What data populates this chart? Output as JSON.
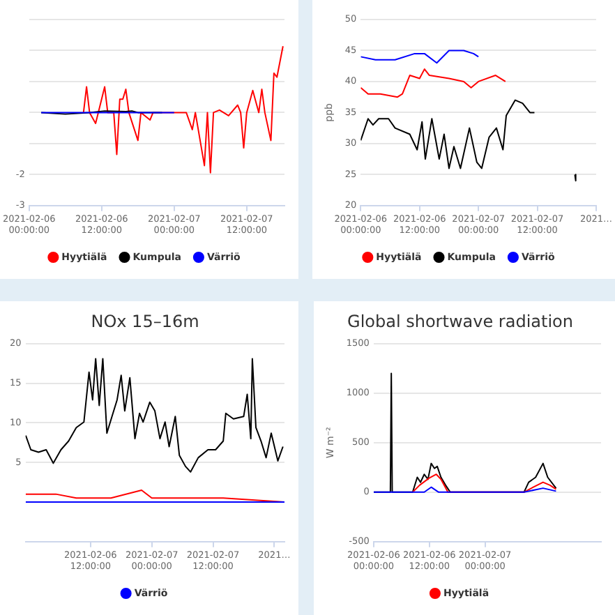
{
  "chart_data": [
    {
      "type": "line",
      "xlim": [
        "2021-02-06T00:00",
        "2021-02-07T18:15"
      ],
      "xticks": [
        {
          "value": "2021-02-06T00:00",
          "label": "2021-02-06 00:00:00"
        },
        {
          "value": "2021-02-06T12:00",
          "label": "2021-02-06 12:00:00"
        },
        {
          "value": "2021-02-07T00:00",
          "label": "2021-02-07 00:00:00"
        },
        {
          "value": "2021-02-07T12:00",
          "label": "2021-02-07 12:00:00"
        }
      ],
      "ylim": [
        -3,
        3
      ],
      "yticks": [
        -3,
        -2,
        {
          "value": -1,
          "label": null
        },
        {
          "value": 0,
          "label": null
        },
        {
          "value": 1,
          "label": null
        },
        {
          "value": 2,
          "label": null
        },
        {
          "value": 3,
          "label": null
        }
      ],
      "grid": "y",
      "legend": "bottom",
      "series": [
        {
          "name": "Hyytiälä",
          "color": "#ff0000",
          "x": [
            "2021-02-06T09:00",
            "2021-02-06T09:30",
            "2021-02-06T10:00",
            "2021-02-06T11:00",
            "2021-02-06T12:30",
            "2021-02-06T13:00",
            "2021-02-06T14:00",
            "2021-02-06T14:30",
            "2021-02-06T15:00",
            "2021-02-06T15:30",
            "2021-02-06T16:00",
            "2021-02-06T16:30",
            "2021-02-06T18:00",
            "2021-02-06T18:30",
            "2021-02-06T20:00",
            "2021-02-06T20:30",
            "2021-02-07T00:00",
            "2021-02-07T02:00",
            "2021-02-07T03:00",
            "2021-02-07T03:30",
            "2021-02-07T05:00",
            "2021-02-07T05:30",
            "2021-02-07T06:00",
            "2021-02-07T06:30",
            "2021-02-07T07:30",
            "2021-02-07T09:00",
            "2021-02-07T10:30",
            "2021-02-07T11:00",
            "2021-02-07T11:30",
            "2021-02-07T12:00",
            "2021-02-07T13:00",
            "2021-02-07T14:00",
            "2021-02-07T14:30",
            "2021-02-07T15:00",
            "2021-02-07T16:00",
            "2021-02-07T16:30",
            "2021-02-07T17:00",
            "2021-02-07T18:00"
          ],
          "values": [
            0,
            0.83,
            0,
            -0.35,
            0.83,
            0,
            0,
            -1.35,
            0.43,
            0.43,
            0.75,
            0,
            -0.9,
            0,
            -0.24,
            0,
            0,
            0,
            -0.55,
            0,
            -1.71,
            0,
            -1.94,
            0,
            0.08,
            -0.1,
            0.24,
            0,
            -1.14,
            0,
            0.71,
            0,
            0.75,
            0,
            -0.9,
            1.27,
            1.14,
            2.14
          ]
        },
        {
          "name": "Kumpula",
          "color": "#000000",
          "x": [
            "2021-02-06T02:00",
            "2021-02-06T06:00",
            "2021-02-06T10:00",
            "2021-02-06T12:30",
            "2021-02-06T16:00",
            "2021-02-06T17:00",
            "2021-02-06T18:00",
            "2021-02-06T22:00"
          ],
          "values": [
            0,
            -0.05,
            0,
            0.05,
            0.03,
            0.05,
            0,
            0
          ]
        },
        {
          "name": "Värriö",
          "color": "#0000ff",
          "x": [
            "2021-02-06T02:00",
            "2021-02-07T00:00"
          ],
          "values": [
            0,
            0
          ]
        }
      ]
    },
    {
      "type": "line",
      "ylabel": "ppb",
      "xlim": [
        "2021-02-06T00:00",
        "2021-02-08T00:00"
      ],
      "xticks": [
        {
          "value": "2021-02-06T00:00",
          "label": "2021-02-06 00:00:00"
        },
        {
          "value": "2021-02-06T12:00",
          "label": "2021-02-06 12:00:00"
        },
        {
          "value": "2021-02-07T00:00",
          "label": "2021-02-07 00:00:00"
        },
        {
          "value": "2021-02-07T12:00",
          "label": "2021-02-07 12:00:00"
        },
        {
          "value": "2021-02-08T00:00",
          "label": "2021…"
        }
      ],
      "ylim": [
        20,
        50
      ],
      "yticks": [
        20,
        25,
        30,
        35,
        40,
        45,
        50
      ],
      "grid": "y",
      "legend": "bottom",
      "series": [
        {
          "name": "Hyytiälä",
          "color": "#ff0000",
          "x": [
            "2021-02-06T00:00",
            "2021-02-06T01:30",
            "2021-02-06T04:00",
            "2021-02-06T07:30",
            "2021-02-06T08:30",
            "2021-02-06T10:00",
            "2021-02-06T12:00",
            "2021-02-06T13:00",
            "2021-02-06T14:00",
            "2021-02-06T18:00",
            "2021-02-06T21:00",
            "2021-02-06T22:30",
            "2021-02-07T00:00",
            "2021-02-07T03:30",
            "2021-02-07T05:30"
          ],
          "values": [
            39,
            38,
            38,
            37.5,
            38,
            41,
            40.5,
            42,
            41,
            40.5,
            40,
            39,
            40,
            41,
            40
          ]
        },
        {
          "name": "Kumpula",
          "color": "#000000",
          "x": [
            "2021-02-06T00:00",
            "2021-02-06T01:30",
            "2021-02-06T02:30",
            "2021-02-06T03:40",
            "2021-02-06T05:40",
            "2021-02-06T07:00",
            "2021-02-06T10:00",
            "2021-02-06T11:30",
            "2021-02-06T12:30",
            "2021-02-06T13:10",
            "2021-02-06T14:30",
            "2021-02-06T16:00",
            "2021-02-06T17:00",
            "2021-02-06T18:00",
            "2021-02-06T19:00",
            "2021-02-06T20:20",
            "2021-02-06T22:10",
            "2021-02-06T23:40",
            "2021-02-07T00:40",
            "2021-02-07T02:10",
            "2021-02-07T03:40",
            "2021-02-07T05:00",
            "2021-02-07T05:40",
            "2021-02-07T07:30",
            "2021-02-07T09:00",
            "2021-02-07T10:30",
            "2021-02-07T11:25",
            "2021-02-07T16:00",
            "2021-02-07T19:40",
            "2021-02-07T19:50"
          ],
          "values": [
            30.5,
            34,
            33,
            34,
            34,
            32.5,
            31.5,
            29,
            33.5,
            27.5,
            34,
            27.5,
            31.5,
            26,
            29.5,
            26,
            32.5,
            27,
            26,
            31,
            32.5,
            29,
            34.5,
            37,
            36.5,
            35,
            35,
            null,
            25,
            24
          ]
        },
        {
          "name": "Värriö",
          "color": "#0000ff",
          "x": [
            "2021-02-06T00:00",
            "2021-02-06T03:00",
            "2021-02-06T07:00",
            "2021-02-06T11:00",
            "2021-02-06T13:00",
            "2021-02-06T15:30",
            "2021-02-06T18:00",
            "2021-02-06T21:00",
            "2021-02-06T23:00",
            "2021-02-07T00:00"
          ],
          "values": [
            44,
            43.5,
            43.5,
            44.5,
            44.5,
            43,
            45,
            45,
            44.5,
            44
          ]
        }
      ]
    },
    {
      "type": "line",
      "title": "NOx 15–16m",
      "xlim": [
        "2021-02-05T23:15",
        "2021-02-08T02:00"
      ],
      "xticks": [
        {
          "value": "2021-02-06T12:00",
          "label": "2021-02-06 12:00:00"
        },
        {
          "value": "2021-02-07T00:00",
          "label": "2021-02-07 00:00:00"
        },
        {
          "value": "2021-02-07T12:00",
          "label": "2021-02-07 12:00:00"
        },
        {
          "value": "2021-02-08T00:00",
          "label": "2021…"
        }
      ],
      "ylim": [
        -5,
        20
      ],
      "yticks": [
        5,
        10,
        15,
        20
      ],
      "grid": "y",
      "legend": "bottom",
      "series": [
        {
          "color": "#000000",
          "x": [
            "2021-02-05T23:18",
            "2021-02-06T00:18",
            "2021-02-06T01:48",
            "2021-02-06T03:18",
            "2021-02-06T04:42",
            "2021-02-06T06:12",
            "2021-02-06T07:42",
            "2021-02-06T09:12",
            "2021-02-06T10:42",
            "2021-02-06T11:42",
            "2021-02-06T12:24",
            "2021-02-06T13:00",
            "2021-02-06T13:42",
            "2021-02-06T14:24",
            "2021-02-06T15:12",
            "2021-02-06T16:12",
            "2021-02-06T17:12",
            "2021-02-06T18:00",
            "2021-02-06T18:42",
            "2021-02-06T19:42",
            "2021-02-06T20:42",
            "2021-02-06T21:36",
            "2021-02-06T22:18",
            "2021-02-06T23:36",
            "2021-02-07T00:36",
            "2021-02-07T01:36",
            "2021-02-07T02:36",
            "2021-02-07T03:24",
            "2021-02-07T04:36",
            "2021-02-07T05:24",
            "2021-02-07T06:36",
            "2021-02-07T07:36",
            "2021-02-07T09:06",
            "2021-02-07T11:00",
            "2021-02-07T12:30",
            "2021-02-07T14:00",
            "2021-02-07T14:30",
            "2021-02-07T16:00",
            "2021-02-07T18:00",
            "2021-02-07T18:42",
            "2021-02-07T19:24",
            "2021-02-07T19:42",
            "2021-02-07T20:24",
            "2021-02-07T21:24",
            "2021-02-07T22:24",
            "2021-02-07T23:24",
            "2021-02-08T00:42",
            "2021-02-08T01:42"
          ],
          "values": [
            8.4,
            6.6,
            6.3,
            6.6,
            4.9,
            6.6,
            7.7,
            9.4,
            10.1,
            16.4,
            12.9,
            18.1,
            12.2,
            18.1,
            8.7,
            10.8,
            12.9,
            16,
            11.5,
            15.7,
            8,
            11.2,
            10.1,
            12.6,
            11.5,
            8,
            10.1,
            7,
            10.8,
            5.9,
            4.5,
            3.8,
            5.6,
            6.6,
            6.6,
            7.7,
            11.2,
            10.5,
            10.8,
            13.6,
            8,
            18.1,
            9.4,
            7.7,
            5.6,
            8.7,
            5.2,
            7
          ]
        },
        {
          "color": "#ff0000",
          "x": [
            "2021-02-05T23:18",
            "2021-02-06T05:12",
            "2021-02-06T09:12",
            "2021-02-06T13:00",
            "2021-02-06T16:00",
            "2021-02-06T22:00",
            "2021-02-07T00:00",
            "2021-02-07T07:00",
            "2021-02-07T14:00",
            "2021-02-08T02:00"
          ],
          "values": [
            1,
            1,
            0.5,
            0.5,
            0.5,
            1.5,
            0.5,
            0.5,
            0.5,
            0
          ]
        },
        {
          "name": "Värriö",
          "color": "#0000ff",
          "x": [
            "2021-02-05T23:18",
            "2021-02-08T02:00"
          ],
          "values": [
            0,
            0
          ]
        }
      ]
    },
    {
      "type": "line",
      "title": "Global shortwave radiation",
      "ylabel": "W m⁻²",
      "xlim": [
        "2021-02-06T00:00",
        "2021-02-08T01:00"
      ],
      "xticks": [
        {
          "value": "2021-02-06T00:00",
          "label": "2021-02-06 00:00:00"
        },
        {
          "value": "2021-02-06T12:00",
          "label": "2021-02-06 12:00:00"
        },
        {
          "value": "2021-02-07T00:00",
          "label": "2021-02-07 00:00:00"
        }
      ],
      "ylim": [
        -500,
        1500
      ],
      "yticks": [
        -500,
        0,
        500,
        1000,
        1500
      ],
      "grid": "y",
      "legend": "bottom",
      "series": [
        {
          "color": "#000000",
          "x": [
            "2021-02-06T00:00",
            "2021-02-06T03:36",
            "2021-02-06T03:48",
            "2021-02-06T04:00",
            "2021-02-06T08:24",
            "2021-02-06T09:24",
            "2021-02-06T10:06",
            "2021-02-06T10:54",
            "2021-02-06T11:42",
            "2021-02-06T12:24",
            "2021-02-06T13:06",
            "2021-02-06T13:42",
            "2021-02-06T14:30",
            "2021-02-06T15:30",
            "2021-02-06T16:30",
            "2021-02-07T08:24",
            "2021-02-07T09:24",
            "2021-02-07T10:54",
            "2021-02-07T12:30",
            "2021-02-07T13:30",
            "2021-02-07T15:18"
          ],
          "values": [
            0,
            0,
            1200,
            0,
            0,
            150,
            100,
            180,
            130,
            290,
            240,
            260,
            150,
            70,
            0,
            0,
            100,
            150,
            290,
            150,
            40
          ]
        },
        {
          "name": "Hyytiälä",
          "color": "#ff0000",
          "x": [
            "2021-02-06T08:24",
            "2021-02-06T09:54",
            "2021-02-06T11:54",
            "2021-02-06T13:30",
            "2021-02-06T14:30",
            "2021-02-06T16:00",
            "2021-02-07T08:24",
            "2021-02-07T10:24",
            "2021-02-07T12:30",
            "2021-02-07T14:00",
            "2021-02-07T15:18"
          ],
          "values": [
            0,
            70,
            140,
            180,
            130,
            0,
            0,
            50,
            100,
            70,
            30
          ]
        },
        {
          "color": "#0000ff",
          "x": [
            "2021-02-06T00:00",
            "2021-02-06T10:54",
            "2021-02-06T12:24",
            "2021-02-06T14:00",
            "2021-02-07T08:24",
            "2021-02-07T12:30",
            "2021-02-07T15:18"
          ],
          "values": [
            0,
            0,
            50,
            0,
            0,
            40,
            10
          ]
        }
      ]
    }
  ]
}
